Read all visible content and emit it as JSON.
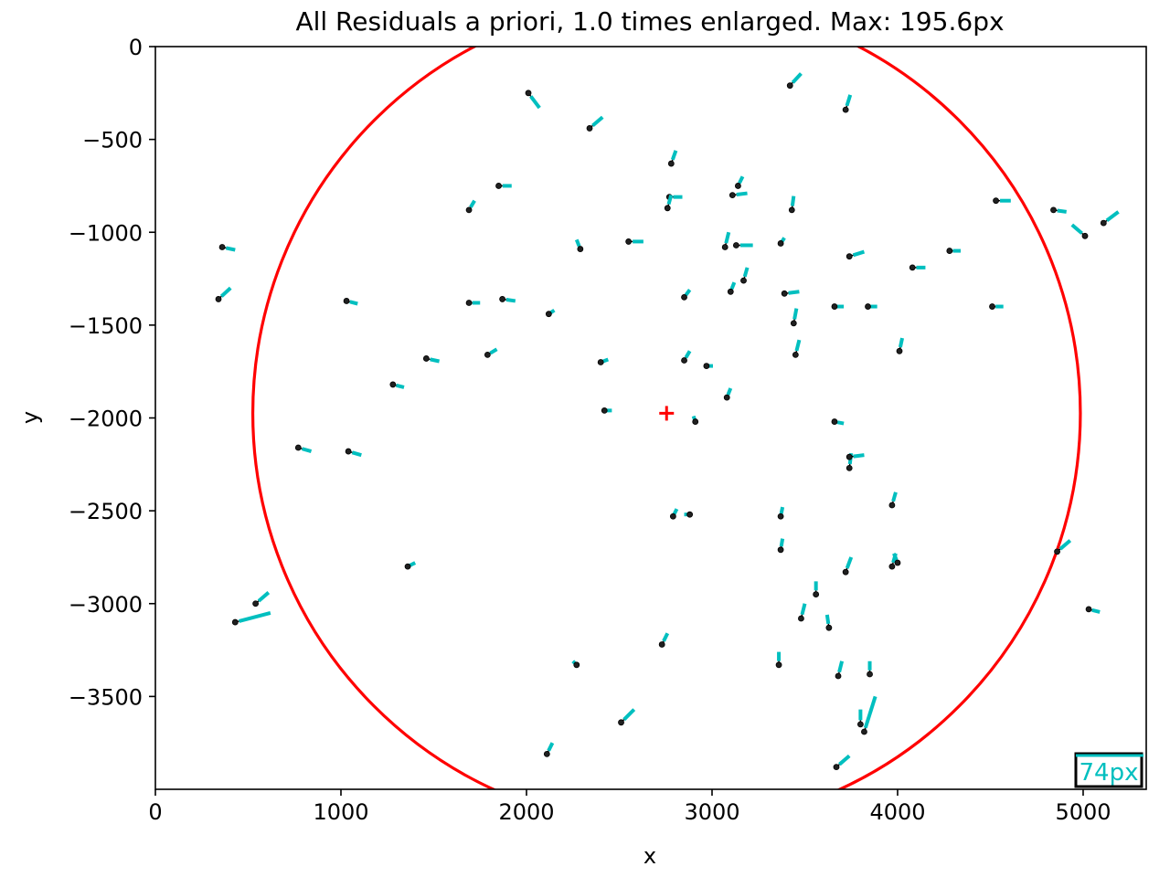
{
  "chart_data": {
    "type": "scatter",
    "title": "All Residuals a priori, 1.0 times enlarged. Max: 195.6px",
    "xlabel": "x",
    "ylabel": "y",
    "xlim": [
      0,
      5340
    ],
    "ylim": [
      -4000,
      0
    ],
    "xticks": [
      0,
      1000,
      2000,
      3000,
      4000,
      5000
    ],
    "xtick_labels": [
      "0",
      "1000",
      "2000",
      "3000",
      "4000",
      "5000"
    ],
    "yticks": [
      0,
      -500,
      -1000,
      -1500,
      -2000,
      -2500,
      -3000,
      -3500
    ],
    "ytick_labels": [
      "0",
      "−500",
      "−1000",
      "−1500",
      "−2000",
      "−2500",
      "−3000",
      "−3500"
    ],
    "grid": false,
    "enlargement": 1.0,
    "max_residual_px": 195.6,
    "scale_bar": {
      "label": "74px",
      "length_px": 74
    },
    "center_marker": {
      "x": 2755,
      "y": -1975,
      "color": "#ff0000"
    },
    "circle": {
      "cx": 2755,
      "cy": -1975,
      "r": 2230,
      "color": "#ff0000"
    },
    "residual_color": "#00bfbf",
    "point_color": "#000000",
    "points": [
      {
        "x": 2010,
        "y": -250,
        "dx": 60,
        "dy": -80
      },
      {
        "x": 2340,
        "y": -440,
        "dx": 70,
        "dy": 60
      },
      {
        "x": 3420,
        "y": -210,
        "dx": 60,
        "dy": 65
      },
      {
        "x": 3720,
        "y": -340,
        "dx": 25,
        "dy": 80
      },
      {
        "x": 2780,
        "y": -630,
        "dx": 25,
        "dy": 70
      },
      {
        "x": 1850,
        "y": -750,
        "dx": 70,
        "dy": 0
      },
      {
        "x": 3140,
        "y": -750,
        "dx": 25,
        "dy": 50
      },
      {
        "x": 1690,
        "y": -880,
        "dx": 30,
        "dy": 50
      },
      {
        "x": 2770,
        "y": -810,
        "dx": 70,
        "dy": 0
      },
      {
        "x": 3110,
        "y": -800,
        "dx": 80,
        "dy": 10
      },
      {
        "x": 2760,
        "y": -870,
        "dx": 20,
        "dy": 70
      },
      {
        "x": 3430,
        "y": -880,
        "dx": 10,
        "dy": 75
      },
      {
        "x": 4530,
        "y": -830,
        "dx": 80,
        "dy": 0
      },
      {
        "x": 4840,
        "y": -880,
        "dx": 70,
        "dy": -10
      },
      {
        "x": 5010,
        "y": -1020,
        "dx": -70,
        "dy": 60
      },
      {
        "x": 5110,
        "y": -950,
        "dx": 80,
        "dy": 60
      },
      {
        "x": 360,
        "y": -1080,
        "dx": 70,
        "dy": -15
      },
      {
        "x": 2290,
        "y": -1090,
        "dx": -20,
        "dy": 50
      },
      {
        "x": 2550,
        "y": -1050,
        "dx": 80,
        "dy": 0
      },
      {
        "x": 3070,
        "y": -1080,
        "dx": 20,
        "dy": 80
      },
      {
        "x": 3130,
        "y": -1070,
        "dx": 90,
        "dy": 0
      },
      {
        "x": 3370,
        "y": -1060,
        "dx": 20,
        "dy": 30
      },
      {
        "x": 3740,
        "y": -1130,
        "dx": 80,
        "dy": 25
      },
      {
        "x": 4080,
        "y": -1190,
        "dx": 70,
        "dy": 0
      },
      {
        "x": 4280,
        "y": -1100,
        "dx": 60,
        "dy": 0
      },
      {
        "x": 340,
        "y": -1360,
        "dx": 65,
        "dy": 60
      },
      {
        "x": 1030,
        "y": -1370,
        "dx": 60,
        "dy": -15
      },
      {
        "x": 1690,
        "y": -1380,
        "dx": 60,
        "dy": 0
      },
      {
        "x": 1870,
        "y": -1360,
        "dx": 70,
        "dy": -10
      },
      {
        "x": 2120,
        "y": -1440,
        "dx": 30,
        "dy": 20
      },
      {
        "x": 2850,
        "y": -1350,
        "dx": 30,
        "dy": 40
      },
      {
        "x": 3100,
        "y": -1320,
        "dx": 20,
        "dy": 50
      },
      {
        "x": 3170,
        "y": -1260,
        "dx": 20,
        "dy": 70
      },
      {
        "x": 3390,
        "y": -1330,
        "dx": 80,
        "dy": 10
      },
      {
        "x": 3660,
        "y": -1400,
        "dx": 50,
        "dy": 0
      },
      {
        "x": 3840,
        "y": -1400,
        "dx": 50,
        "dy": 0
      },
      {
        "x": 4510,
        "y": -1400,
        "dx": 60,
        "dy": 0
      },
      {
        "x": 3440,
        "y": -1490,
        "dx": 15,
        "dy": 80
      },
      {
        "x": 1460,
        "y": -1680,
        "dx": 70,
        "dy": -15
      },
      {
        "x": 1790,
        "y": -1660,
        "dx": 50,
        "dy": 30
      },
      {
        "x": 2400,
        "y": -1700,
        "dx": 40,
        "dy": 15
      },
      {
        "x": 2850,
        "y": -1690,
        "dx": 30,
        "dy": 50
      },
      {
        "x": 2970,
        "y": -1720,
        "dx": 35,
        "dy": 0
      },
      {
        "x": 3450,
        "y": -1660,
        "dx": 20,
        "dy": 80
      },
      {
        "x": 4010,
        "y": -1640,
        "dx": 15,
        "dy": 70
      },
      {
        "x": 1280,
        "y": -1820,
        "dx": 60,
        "dy": -15
      },
      {
        "x": 3080,
        "y": -1890,
        "dx": 20,
        "dy": 50
      },
      {
        "x": 2420,
        "y": -1960,
        "dx": 40,
        "dy": 0
      },
      {
        "x": 2910,
        "y": -2020,
        "dx": -10,
        "dy": 30
      },
      {
        "x": 3660,
        "y": -2020,
        "dx": 50,
        "dy": -10
      },
      {
        "x": 770,
        "y": -2160,
        "dx": 70,
        "dy": -20
      },
      {
        "x": 1040,
        "y": -2180,
        "dx": 70,
        "dy": -20
      },
      {
        "x": 3740,
        "y": -2270,
        "dx": 10,
        "dy": 80
      },
      {
        "x": 3740,
        "y": -2210,
        "dx": 80,
        "dy": 10
      },
      {
        "x": 3970,
        "y": -2470,
        "dx": 20,
        "dy": 70
      },
      {
        "x": 2790,
        "y": -2530,
        "dx": 20,
        "dy": 40
      },
      {
        "x": 2880,
        "y": -2520,
        "dx": -30,
        "dy": 0
      },
      {
        "x": 3370,
        "y": -2530,
        "dx": 10,
        "dy": 50
      },
      {
        "x": 3370,
        "y": -2710,
        "dx": 10,
        "dy": 60
      },
      {
        "x": 4860,
        "y": -2720,
        "dx": 70,
        "dy": 60
      },
      {
        "x": 3970,
        "y": -2800,
        "dx": 20,
        "dy": 70
      },
      {
        "x": 4000,
        "y": -2780,
        "dx": -20,
        "dy": 50
      },
      {
        "x": 3720,
        "y": -2830,
        "dx": 30,
        "dy": 80
      },
      {
        "x": 1360,
        "y": -2800,
        "dx": 40,
        "dy": 20
      },
      {
        "x": 540,
        "y": -3000,
        "dx": 70,
        "dy": 60
      },
      {
        "x": 430,
        "y": -3100,
        "dx": 190,
        "dy": 50
      },
      {
        "x": 5030,
        "y": -3030,
        "dx": 60,
        "dy": -15
      },
      {
        "x": 3560,
        "y": -2950,
        "dx": 0,
        "dy": 70
      },
      {
        "x": 3480,
        "y": -3080,
        "dx": 20,
        "dy": 80
      },
      {
        "x": 3630,
        "y": -3130,
        "dx": -10,
        "dy": 70
      },
      {
        "x": 2730,
        "y": -3220,
        "dx": 30,
        "dy": 60
      },
      {
        "x": 2270,
        "y": -3330,
        "dx": -20,
        "dy": 20
      },
      {
        "x": 3360,
        "y": -3330,
        "dx": 0,
        "dy": 70
      },
      {
        "x": 3680,
        "y": -3390,
        "dx": 20,
        "dy": 80
      },
      {
        "x": 3850,
        "y": -3380,
        "dx": 0,
        "dy": 70
      },
      {
        "x": 3800,
        "y": -3650,
        "dx": 0,
        "dy": 80
      },
      {
        "x": 3820,
        "y": -3690,
        "dx": 60,
        "dy": 190
      },
      {
        "x": 2510,
        "y": -3640,
        "dx": 70,
        "dy": 70
      },
      {
        "x": 2110,
        "y": -3810,
        "dx": 30,
        "dy": 60
      },
      {
        "x": 3670,
        "y": -3880,
        "dx": 70,
        "dy": 60
      }
    ]
  }
}
